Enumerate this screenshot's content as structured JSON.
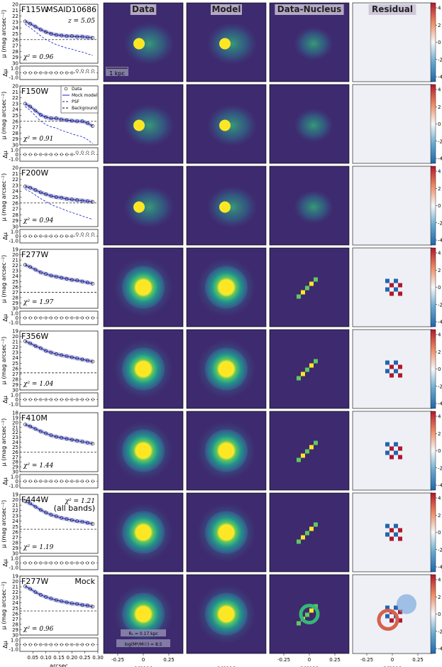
{
  "figure": {
    "column_titles": [
      "Data",
      "Model",
      "Data-Nucleus",
      "Residual"
    ],
    "scale_bar_label": "1 kpc",
    "object_id": "MSAID10686",
    "redshift_label": "z = 5.05",
    "profile_ylabel": "μ (mag arcsec⁻²)",
    "residual_ylabel": "Δμ",
    "xlabel": "arcsec",
    "legend": [
      "Data",
      "Mock model",
      "PSF",
      "Background"
    ],
    "all_bands_label": "(all bands)",
    "all_bands_chi2": "χ² = 1.21",
    "mock_label": "Mock",
    "mock_re": "Rₑ = 0.17 kpc",
    "mock_mass": "log(M*/M☉) = 8.5",
    "image_xticks": [
      "-0.25",
      "0",
      "0.25"
    ],
    "profile_xticks": [
      "0.05",
      "0.10",
      "0.15",
      "0.20",
      "0.25",
      "0.30"
    ],
    "colorbar_ticks": [
      "4",
      "2",
      "0",
      "-2",
      "-4"
    ],
    "residual_yticks": [
      "1.0",
      "0",
      "-1.0"
    ]
  },
  "chart_data": [
    {
      "type": "scatter",
      "band": "F115W",
      "chi2": "χ² = 0.96",
      "yticks": [
        "20",
        "21",
        "22",
        "23",
        "24",
        "25",
        "26",
        "27",
        "28",
        "29",
        "30"
      ],
      "ylim": [
        30,
        20
      ],
      "x": [
        0.02,
        0.04,
        0.06,
        0.08,
        0.1,
        0.12,
        0.14,
        0.16,
        0.18,
        0.2,
        0.22,
        0.24,
        0.26,
        0.28
      ],
      "y": [
        22.9,
        23.3,
        23.8,
        24.3,
        24.7,
        25.0,
        25.2,
        25.3,
        25.4,
        25.4,
        25.5,
        25.5,
        25.6,
        25.7
      ],
      "background": 26.0
    },
    {
      "type": "scatter",
      "band": "F150W",
      "chi2": "χ² = 0.91",
      "yticks": [
        "20",
        "21",
        "22",
        "23",
        "24",
        "25",
        "26",
        "27",
        "28",
        "29",
        "30"
      ],
      "ylim": [
        30,
        20
      ],
      "x": [
        0.02,
        0.04,
        0.06,
        0.08,
        0.1,
        0.12,
        0.14,
        0.16,
        0.18,
        0.2,
        0.22,
        0.24,
        0.26,
        0.28
      ],
      "y": [
        23.0,
        23.5,
        24.2,
        24.9,
        25.3,
        25.5,
        25.5,
        25.7,
        25.8,
        25.9,
        26.0,
        26.0,
        26.3,
        26.8
      ],
      "background": 26.0
    },
    {
      "type": "scatter",
      "band": "F200W",
      "chi2": "χ² = 0.94",
      "yticks": [
        "20",
        "21",
        "22",
        "23",
        "24",
        "25",
        "26",
        "27",
        "28",
        "29",
        "30"
      ],
      "ylim": [
        30,
        20
      ],
      "x": [
        0.02,
        0.04,
        0.06,
        0.08,
        0.1,
        0.12,
        0.14,
        0.16,
        0.18,
        0.2,
        0.22,
        0.24,
        0.26,
        0.28
      ],
      "y": [
        23.2,
        23.4,
        23.8,
        24.2,
        24.5,
        24.8,
        25.0,
        25.1,
        25.3,
        25.4,
        25.5,
        25.6,
        25.7,
        25.8
      ],
      "background": 26.0
    },
    {
      "type": "scatter",
      "band": "F277W",
      "chi2": "χ² = 1.97",
      "yticks": [
        "19",
        "20",
        "21",
        "22",
        "23",
        "24",
        "25",
        "26",
        "27",
        "28",
        "29",
        "30"
      ],
      "ylim": [
        30,
        19
      ],
      "x": [
        0.02,
        0.04,
        0.06,
        0.08,
        0.1,
        0.12,
        0.14,
        0.16,
        0.18,
        0.2,
        0.22,
        0.24,
        0.26,
        0.28
      ],
      "y": [
        21.9,
        22.3,
        22.8,
        23.3,
        23.6,
        23.9,
        24.1,
        24.3,
        24.5,
        24.7,
        24.8,
        25.0,
        25.2,
        25.4
      ],
      "background": 27.0
    },
    {
      "type": "scatter",
      "band": "F356W",
      "chi2": "χ² = 1.04",
      "yticks": [
        "19",
        "20",
        "21",
        "22",
        "23",
        "24",
        "25",
        "26",
        "27",
        "28",
        "29",
        "30"
      ],
      "ylim": [
        30,
        19
      ],
      "x": [
        0.02,
        0.04,
        0.06,
        0.08,
        0.1,
        0.12,
        0.14,
        0.16,
        0.18,
        0.2,
        0.22,
        0.24,
        0.26,
        0.28
      ],
      "y": [
        20.9,
        21.3,
        21.8,
        22.2,
        22.7,
        23.0,
        23.3,
        23.5,
        23.7,
        23.9,
        24.1,
        24.3,
        24.5,
        24.7
      ],
      "background": 26.8
    },
    {
      "type": "scatter",
      "band": "F410M",
      "chi2": "χ² = 1.44",
      "yticks": [
        "18",
        "19",
        "20",
        "21",
        "22",
        "23",
        "24",
        "25",
        "26",
        "27",
        "28",
        "29",
        "30"
      ],
      "ylim": [
        30,
        18
      ],
      "x": [
        0.02,
        0.04,
        0.06,
        0.08,
        0.1,
        0.12,
        0.14,
        0.16,
        0.18,
        0.2,
        0.22,
        0.24,
        0.26,
        0.28
      ],
      "y": [
        20.4,
        20.8,
        21.3,
        21.8,
        22.2,
        22.6,
        22.9,
        23.1,
        23.3,
        23.5,
        23.7,
        23.9,
        24.1,
        24.3
      ],
      "background": 26.0
    },
    {
      "type": "scatter",
      "band": "F444W",
      "chi2": "χ² = 1.19",
      "yticks": [
        "19",
        "20",
        "21",
        "22",
        "23",
        "24",
        "25",
        "26",
        "27",
        "28",
        "29",
        "30"
      ],
      "ylim": [
        30,
        19
      ],
      "x": [
        0.02,
        0.04,
        0.06,
        0.08,
        0.1,
        0.12,
        0.14,
        0.16,
        0.18,
        0.2,
        0.22,
        0.24,
        0.26,
        0.28
      ],
      "y": [
        20.3,
        20.7,
        21.3,
        21.9,
        22.4,
        22.8,
        23.1,
        23.4,
        23.6,
        23.8,
        24.0,
        24.1,
        24.3,
        24.5
      ],
      "background": 25.5
    },
    {
      "type": "scatter",
      "band": "F277W",
      "chi2": "χ² = 0.96",
      "yticks": [
        "19",
        "20",
        "21",
        "22",
        "23",
        "24",
        "25",
        "26",
        "27",
        "28",
        "29",
        "30"
      ],
      "ylim": [
        30,
        19
      ],
      "x": [
        0.02,
        0.04,
        0.06,
        0.08,
        0.1,
        0.12,
        0.14,
        0.16,
        0.18,
        0.2,
        0.22,
        0.24,
        0.26,
        0.28
      ],
      "y": [
        20.9,
        21.4,
        22.0,
        22.5,
        22.9,
        23.2,
        23.5,
        23.7,
        23.9,
        24.1,
        24.2,
        24.4,
        24.5,
        24.7
      ],
      "background": 25.5
    }
  ]
}
